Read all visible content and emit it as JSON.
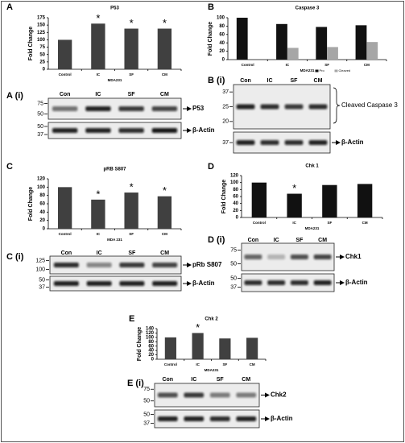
{
  "chart_data": [
    {
      "type": "bar",
      "panel": "A",
      "title": "P53",
      "ylabel": "Fold Change",
      "xlabel": "MDA231",
      "categories": [
        "Control",
        "IC",
        "SF",
        "CM"
      ],
      "values": [
        100,
        155,
        138,
        138
      ],
      "color": "#404040",
      "ylim": [
        0,
        175
      ],
      "yticks": [
        0,
        25,
        50,
        75,
        100,
        125,
        150,
        175
      ],
      "annotations": [
        {
          "text": "*",
          "category": "IC"
        },
        {
          "text": "*",
          "category": "SF"
        },
        {
          "text": "*",
          "category": "CM"
        }
      ]
    },
    {
      "type": "bar",
      "panel": "B",
      "title": "Caspase 3",
      "ylabel": "Fold Change",
      "xlabel": "MDA231",
      "categories": [
        "Control",
        "IC",
        "SF",
        "CM"
      ],
      "series": [
        {
          "name": "Pro",
          "color": "#111111",
          "values": [
            100,
            85,
            78,
            82
          ]
        },
        {
          "name": "Cleaved",
          "color": "#a6a6a6",
          "values": [
            null,
            28,
            30,
            42
          ]
        }
      ],
      "ylim": [
        0,
        100
      ],
      "yticks": [
        0,
        20,
        40,
        60,
        80,
        100
      ]
    },
    {
      "type": "bar",
      "panel": "C",
      "title": "pRB S807",
      "ylabel": "Fold Change",
      "xlabel": "MDA 231",
      "categories": [
        "Control",
        "IC",
        "SF",
        "CM"
      ],
      "values": [
        100,
        70,
        87,
        78
      ],
      "color": "#404040",
      "ylim": [
        0,
        120
      ],
      "yticks": [
        0,
        20,
        40,
        60,
        80,
        100,
        120
      ],
      "annotations": [
        {
          "text": "*",
          "category": "IC"
        },
        {
          "text": "*",
          "category": "SF"
        },
        {
          "text": "*",
          "category": "CM"
        }
      ]
    },
    {
      "type": "bar",
      "panel": "D",
      "title": "Chk 1",
      "ylabel": "Fold Change",
      "xlabel": "MDA231",
      "categories": [
        "Control",
        "IC",
        "SF",
        "CM"
      ],
      "values": [
        100,
        68,
        93,
        96
      ],
      "color": "#111111",
      "ylim": [
        0,
        120
      ],
      "yticks": [
        0,
        20,
        40,
        60,
        80,
        100,
        120
      ],
      "annotations": [
        {
          "text": "*",
          "category": "IC"
        }
      ]
    },
    {
      "type": "bar",
      "panel": "E",
      "title": "Chk 2",
      "ylabel": "Fold Change",
      "xlabel": "MDA231",
      "categories": [
        "Control",
        "IC",
        "SF",
        "CM"
      ],
      "values": [
        100,
        120,
        95,
        98
      ],
      "color": "#404040",
      "ylim": [
        0,
        140
      ],
      "yticks": [
        0,
        20,
        40,
        60,
        80,
        100,
        120,
        140
      ],
      "annotations": [
        {
          "text": "*",
          "category": "IC"
        }
      ]
    }
  ],
  "blots": [
    {
      "label": "A (i)",
      "lanes": [
        "Con",
        "IC",
        "SF",
        "CM"
      ],
      "strips": [
        {
          "markers": [
            "75",
            "50"
          ],
          "band": "P53"
        },
        {
          "markers": [
            "50",
            "37"
          ],
          "band": "β-Actin"
        }
      ]
    },
    {
      "label": "B (i)",
      "lanes": [
        "Con",
        "IC",
        "SF",
        "CM"
      ],
      "strips": [
        {
          "markers": [
            "37",
            "25",
            "20"
          ],
          "band": "Cleaved Caspase 3"
        },
        {
          "markers": [
            "37"
          ],
          "band": "β-Actin"
        }
      ]
    },
    {
      "label": "C (i)",
      "lanes": [
        "Con",
        "IC",
        "SF",
        "CM"
      ],
      "strips": [
        {
          "markers": [
            "125",
            "100"
          ],
          "band": "pRb S807"
        },
        {
          "markers": [
            "50",
            "37"
          ],
          "band": "β-Actin"
        }
      ]
    },
    {
      "label": "D (i)",
      "lanes": [
        "Con",
        "IC",
        "SF",
        "CM"
      ],
      "strips": [
        {
          "markers": [
            "75",
            "50"
          ],
          "band": "Chk1"
        },
        {
          "markers": [
            "50",
            "37"
          ],
          "band": "β-Actin"
        }
      ]
    },
    {
      "label": "E (i)",
      "lanes": [
        "Con",
        "IC",
        "SF",
        "CM"
      ],
      "strips": [
        {
          "markers": [
            "75",
            "50"
          ],
          "band": "Chk2"
        },
        {
          "markers": [
            "50",
            "37"
          ],
          "band": "β-Actin"
        }
      ]
    }
  ]
}
